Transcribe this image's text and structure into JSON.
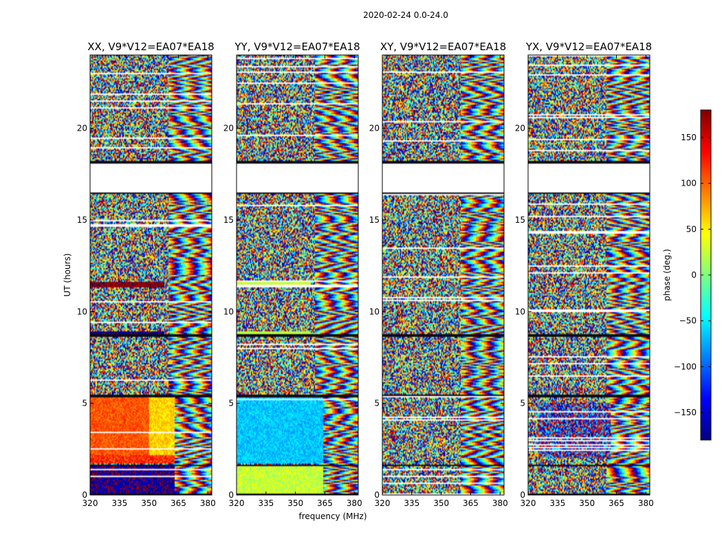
{
  "figure_title": "2020-02-24 0.0-24.0",
  "chart_data": {
    "type": "heatmap",
    "xlabel": "frequency (MHz)",
    "ylabel": "UT (hours)",
    "xlim": [
      320,
      382
    ],
    "ylim": [
      0,
      24
    ],
    "x_ticks": [
      320,
      335,
      350,
      365,
      380
    ],
    "y_ticks": [
      0,
      5,
      10,
      15,
      20
    ],
    "colorbar": {
      "label": "phase (deg.)",
      "range": [
        -180,
        180
      ],
      "ticks": [
        150,
        100,
        50,
        0,
        -50,
        -100,
        -150
      ],
      "tick_labels": [
        "150",
        "100",
        "50",
        "0",
        "−50",
        "−100",
        "−150"
      ],
      "colormap": "jet",
      "colors": [
        "#00007f",
        "#0000ff",
        "#007fff",
        "#00ffff",
        "#7fff7f",
        "#ffff00",
        "#ff7f00",
        "#ff0000",
        "#7f0000"
      ]
    },
    "blank_intervals_hours": [
      [
        16.5,
        18.1
      ]
    ],
    "dark_band_hours": [
      [
        0.0,
        0.1
      ],
      [
        1.55,
        1.65
      ],
      [
        5.3,
        5.45
      ],
      [
        8.6,
        8.75
      ],
      [
        16.4,
        16.5
      ],
      [
        18.1,
        18.2
      ]
    ],
    "panels": [
      {
        "title": "XX, V9*V12=EA07*EA18",
        "regions": [
          {
            "t": [
              0.1,
              1.55
            ],
            "f": [
              320,
              363
            ],
            "phase_deg": -170,
            "spread": 25
          },
          {
            "t": [
              1.7,
              2.2
            ],
            "f": [
              320,
              363
            ],
            "phase_deg": 120,
            "spread": 30
          },
          {
            "t": [
              2.2,
              5.3
            ],
            "f": [
              320,
              350
            ],
            "phase_deg": 105,
            "spread": 20
          },
          {
            "t": [
              2.2,
              5.3
            ],
            "f": [
              350,
              363
            ],
            "phase_deg": 60,
            "spread": 20
          },
          {
            "t": [
              11.3,
              11.6
            ],
            "f": [
              320,
              358
            ],
            "phase_deg": 175,
            "spread": 8
          },
          {
            "t": [
              8.75,
              8.9
            ],
            "f": [
              320,
              358
            ],
            "phase_deg": -175,
            "spread": 8
          }
        ]
      },
      {
        "title": "YY, V9*V12=EA07*EA18",
        "regions": [
          {
            "t": [
              0.1,
              1.55
            ],
            "f": [
              320,
              364
            ],
            "phase_deg": 25,
            "spread": 20
          },
          {
            "t": [
              1.7,
              5.3
            ],
            "f": [
              320,
              364
            ],
            "phase_deg": -65,
            "spread": 20
          },
          {
            "t": [
              11.3,
              11.6
            ],
            "f": [
              320,
              358
            ],
            "phase_deg": 25,
            "spread": 10
          },
          {
            "t": [
              8.75,
              8.9
            ],
            "f": [
              320,
              358
            ],
            "phase_deg": 20,
            "spread": 10
          }
        ]
      },
      {
        "title": "XY, V9*V12=EA07*EA18",
        "regions": []
      },
      {
        "title": "YX, V9*V12=EA07*EA18",
        "regions": [
          {
            "t": [
              2.0,
              5.0
            ],
            "f": [
              325,
              362
            ],
            "phase_deg": -150,
            "spread": 120
          }
        ]
      }
    ]
  }
}
